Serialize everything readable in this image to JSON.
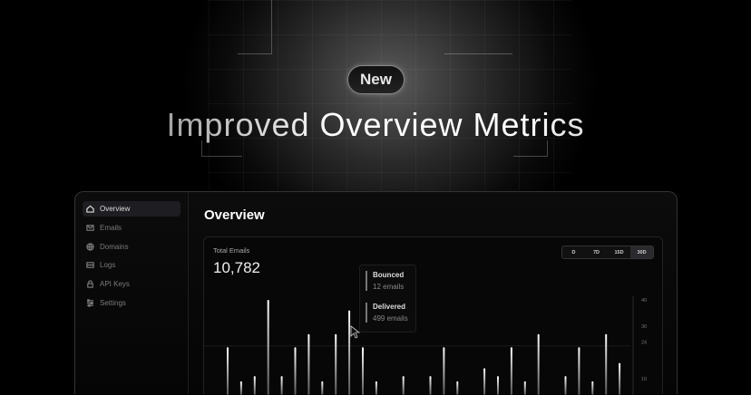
{
  "hero": {
    "badge": "New",
    "headline": "Improved Overview Metrics"
  },
  "sidebar": {
    "items": [
      {
        "label": "Overview",
        "icon": "home-icon",
        "active": true
      },
      {
        "label": "Emails",
        "icon": "mail-icon"
      },
      {
        "label": "Domains",
        "icon": "globe-icon"
      },
      {
        "label": "Logs",
        "icon": "logs-icon"
      },
      {
        "label": "API Keys",
        "icon": "lock-icon"
      },
      {
        "label": "Settings",
        "icon": "sliders-icon"
      }
    ]
  },
  "main": {
    "title": "Overview",
    "card": {
      "label": "Total Emails",
      "total": "10,782",
      "ranges": [
        {
          "label": "D"
        },
        {
          "label": "7D"
        },
        {
          "label": "15D"
        },
        {
          "label": "30D",
          "selected": true
        }
      ],
      "tooltip": {
        "bounced_label": "Bounced",
        "bounced_value": "12 emails",
        "delivered_label": "Delivered",
        "delivered_value": "499 emails"
      }
    }
  },
  "chart_data": {
    "type": "bar",
    "ylim": [
      0,
      40
    ],
    "yticks": [
      "40",
      "30",
      "24",
      "10"
    ],
    "ytick_values": [
      40,
      30,
      24,
      10
    ],
    "values": [
      22,
      9,
      11,
      40,
      11,
      22,
      27,
      9,
      27,
      36,
      22,
      9,
      0,
      11,
      0,
      11,
      22,
      9,
      0,
      14,
      11,
      22,
      9,
      27,
      0,
      11,
      22,
      9,
      27,
      16
    ],
    "bar_color": "#d9d9d9"
  }
}
